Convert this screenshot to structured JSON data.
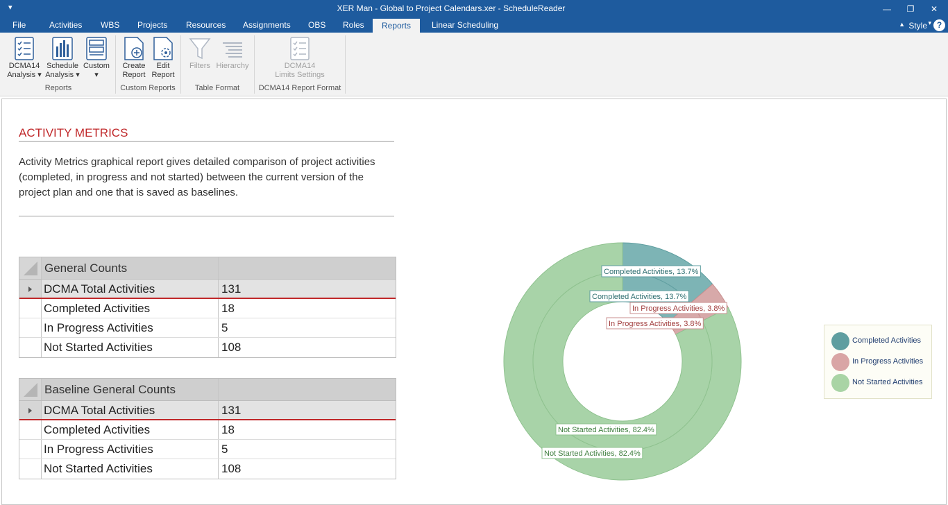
{
  "window": {
    "title": "XER Man - Global to Project Calendars.xer - ScheduleReader",
    "quick_access": "▾",
    "minimize": "—",
    "restore": "❐",
    "close": "✕"
  },
  "menu": {
    "tabs": [
      "File",
      "Activities",
      "WBS",
      "Projects",
      "Resources",
      "Assignments",
      "OBS",
      "Roles",
      "Reports",
      "Linear Scheduling"
    ],
    "active": "Reports",
    "style_label": "Style",
    "help": "?"
  },
  "ribbon": {
    "groups": [
      {
        "label": "Reports",
        "buttons": [
          {
            "label1": "DCMA14",
            "label2": "Analysis ▾",
            "icon": "checklist-icon"
          },
          {
            "label1": "Schedule",
            "label2": "Analysis ▾",
            "icon": "bar-chart-icon"
          },
          {
            "label1": "Custom",
            "label2": "▾",
            "icon": "custom-report-icon"
          }
        ]
      },
      {
        "label": "Custom Reports",
        "buttons": [
          {
            "label1": "Create",
            "label2": "Report",
            "icon": "create-report-icon"
          },
          {
            "label1": "Edit",
            "label2": "Report",
            "icon": "edit-report-icon"
          }
        ]
      },
      {
        "label": "Table Format",
        "buttons": [
          {
            "label1": "Filters",
            "label2": "",
            "icon": "filter-icon"
          },
          {
            "label1": "Hierarchy",
            "label2": "",
            "icon": "hierarchy-icon"
          }
        ]
      },
      {
        "label": "DCMA14 Report Format",
        "buttons": [
          {
            "label1": "DCMA14",
            "label2": "Limits Settings",
            "icon": "limits-settings-icon"
          }
        ]
      }
    ]
  },
  "report": {
    "title": "ACTIVITY METRICS",
    "description": "Activity Metrics graphical report gives detailed comparison of project activities (completed, in progress and not started) between the current version of the project plan and one that is saved as baselines."
  },
  "tables": [
    {
      "header": "General Counts",
      "header_value": "",
      "rows": [
        {
          "label": "DCMA Total Activities",
          "value": "131"
        },
        {
          "label": "Completed Activities",
          "value": "18"
        },
        {
          "label": "In Progress Activities",
          "value": "5"
        },
        {
          "label": "Not Started Activities",
          "value": "108"
        }
      ]
    },
    {
      "header": "Baseline General Counts",
      "header_value": "",
      "rows": [
        {
          "label": "DCMA Total Activities",
          "value": "131"
        },
        {
          "label": "Completed Activities",
          "value": "18"
        },
        {
          "label": "In Progress Activities",
          "value": "5"
        },
        {
          "label": "Not Started Activities",
          "value": "108"
        }
      ]
    }
  ],
  "chart_data": {
    "type": "pie",
    "subtype": "nested-doughnut",
    "rings": [
      {
        "ring": "outer",
        "slices": [
          {
            "name": "Completed Activities",
            "value": 13.7,
            "label": "Completed Activities, 13.7%"
          },
          {
            "name": "In Progress Activities",
            "value": 3.8,
            "label": "In Progress Activities, 3.8%"
          },
          {
            "name": "Not Started Activities",
            "value": 82.4,
            "label": "Not Started Activities, 82.4%"
          }
        ]
      },
      {
        "ring": "inner",
        "slices": [
          {
            "name": "Completed Activities",
            "value": 13.7,
            "label": "Completed Activities, 13.7%"
          },
          {
            "name": "In Progress Activities",
            "value": 3.8,
            "label": "In Progress Activities, 3.8%"
          },
          {
            "name": "Not Started Activities",
            "value": 82.4,
            "label": "Not Started Activities, 82.4%"
          }
        ]
      }
    ],
    "colors": {
      "Completed Activities": "#7db4b5",
      "In Progress Activities": "#d7a9a9",
      "Not Started Activities": "#a8d3a8"
    },
    "legend": {
      "position": "right",
      "items": [
        {
          "name": "Completed Activities",
          "color": "#5f9ea0"
        },
        {
          "name": "In Progress Activities",
          "color": "#d9a5a5"
        },
        {
          "name": "Not Started Activities",
          "color": "#a9d4a5"
        }
      ]
    }
  }
}
